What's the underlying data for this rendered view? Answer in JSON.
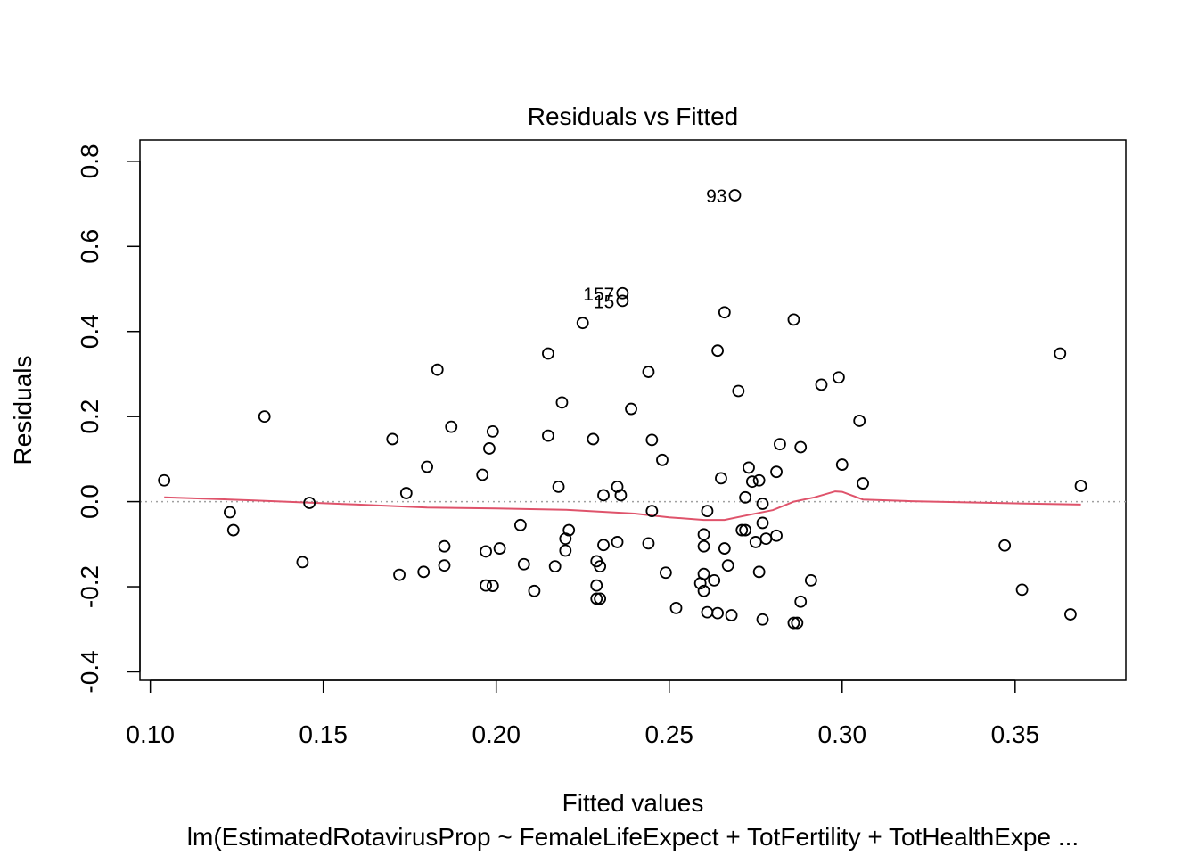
{
  "chart_data": {
    "type": "scatter",
    "title": "Residuals vs Fitted",
    "xlabel": "Fitted values",
    "ylabel": "Residuals",
    "subtitle": "lm(EstimatedRotavirusProp ~ FemaleLifeExpect + TotFertility + TotHealthExpe ...",
    "xlim": [
      0.097,
      0.382
    ],
    "ylim": [
      -0.42,
      0.85
    ],
    "xticks": [
      0.1,
      0.15,
      0.2,
      0.25,
      0.3,
      0.35
    ],
    "xtick_labels": [
      "0.10",
      "0.15",
      "0.20",
      "0.25",
      "0.30",
      "0.35"
    ],
    "yticks": [
      -0.4,
      -0.2,
      0.0,
      0.2,
      0.4,
      0.6,
      0.8
    ],
    "ytick_labels": [
      "-0.4",
      "-0.2",
      "0.0",
      "0.2",
      "0.4",
      "0.6",
      "0.8"
    ],
    "reference_line": {
      "y": 0,
      "style": "dotted",
      "color": "#a0a0a0"
    },
    "smooth_color": "#df536b",
    "point_color": "#000000",
    "points": [
      [
        0.104,
        0.05
      ],
      [
        0.123,
        -0.025
      ],
      [
        0.124,
        -0.067
      ],
      [
        0.133,
        0.2
      ],
      [
        0.144,
        -0.142
      ],
      [
        0.146,
        -0.003
      ],
      [
        0.17,
        0.147
      ],
      [
        0.172,
        -0.172
      ],
      [
        0.174,
        0.02
      ],
      [
        0.179,
        -0.165
      ],
      [
        0.18,
        0.082
      ],
      [
        0.183,
        0.31
      ],
      [
        0.185,
        -0.105
      ],
      [
        0.185,
        -0.15
      ],
      [
        0.187,
        0.176
      ],
      [
        0.196,
        0.063
      ],
      [
        0.197,
        -0.197
      ],
      [
        0.197,
        -0.117
      ],
      [
        0.198,
        0.125
      ],
      [
        0.199,
        0.165
      ],
      [
        0.199,
        -0.198
      ],
      [
        0.201,
        -0.11
      ],
      [
        0.207,
        -0.055
      ],
      [
        0.208,
        -0.147
      ],
      [
        0.211,
        -0.21
      ],
      [
        0.215,
        0.155
      ],
      [
        0.215,
        0.348
      ],
      [
        0.217,
        -0.152
      ],
      [
        0.218,
        0.035
      ],
      [
        0.219,
        0.233
      ],
      [
        0.22,
        -0.115
      ],
      [
        0.22,
        -0.087
      ],
      [
        0.221,
        -0.067
      ],
      [
        0.225,
        0.42
      ],
      [
        0.228,
        0.147
      ],
      [
        0.229,
        -0.14
      ],
      [
        0.229,
        -0.197
      ],
      [
        0.229,
        -0.228
      ],
      [
        0.23,
        -0.152
      ],
      [
        0.23,
        -0.228
      ],
      [
        0.231,
        0.015
      ],
      [
        0.231,
        -0.102
      ],
      [
        0.235,
        0.035
      ],
      [
        0.235,
        -0.095
      ],
      [
        0.236,
        0.015
      ],
      [
        0.239,
        0.218
      ],
      [
        0.244,
        -0.098
      ],
      [
        0.244,
        0.305
      ],
      [
        0.245,
        0.145
      ],
      [
        0.245,
        -0.022
      ],
      [
        0.248,
        0.098
      ],
      [
        0.249,
        -0.167
      ],
      [
        0.252,
        -0.25
      ],
      [
        0.259,
        -0.192
      ],
      [
        0.26,
        -0.077
      ],
      [
        0.26,
        -0.105
      ],
      [
        0.26,
        -0.17
      ],
      [
        0.26,
        -0.21
      ],
      [
        0.261,
        -0.022
      ],
      [
        0.261,
        -0.26
      ],
      [
        0.263,
        -0.185
      ],
      [
        0.264,
        0.355
      ],
      [
        0.264,
        -0.262
      ],
      [
        0.265,
        0.055
      ],
      [
        0.266,
        -0.11
      ],
      [
        0.266,
        0.445
      ],
      [
        0.267,
        -0.15
      ],
      [
        0.268,
        -0.267
      ],
      [
        0.27,
        0.26
      ],
      [
        0.271,
        -0.067
      ],
      [
        0.272,
        -0.067
      ],
      [
        0.272,
        0.01
      ],
      [
        0.273,
        0.08
      ],
      [
        0.274,
        0.047
      ],
      [
        0.275,
        -0.095
      ],
      [
        0.276,
        0.05
      ],
      [
        0.276,
        -0.165
      ],
      [
        0.277,
        -0.277
      ],
      [
        0.277,
        -0.005
      ],
      [
        0.277,
        -0.05
      ],
      [
        0.278,
        -0.087
      ],
      [
        0.281,
        -0.08
      ],
      [
        0.281,
        0.07
      ],
      [
        0.282,
        0.135
      ],
      [
        0.286,
        -0.285
      ],
      [
        0.286,
        0.428
      ],
      [
        0.287,
        -0.285
      ],
      [
        0.288,
        0.128
      ],
      [
        0.288,
        -0.235
      ],
      [
        0.291,
        -0.185
      ],
      [
        0.294,
        0.275
      ],
      [
        0.299,
        0.292
      ],
      [
        0.3,
        0.087
      ],
      [
        0.305,
        0.19
      ],
      [
        0.306,
        0.043
      ],
      [
        0.347,
        -0.103
      ],
      [
        0.352,
        -0.207
      ],
      [
        0.363,
        0.348
      ],
      [
        0.366,
        -0.265
      ],
      [
        0.369,
        0.037
      ]
    ],
    "labeled_points": [
      {
        "label": "93",
        "x": 0.269,
        "y": 0.72
      },
      {
        "label": "157",
        "x": 0.2365,
        "y": 0.49
      },
      {
        "label": "15",
        "x": 0.2365,
        "y": 0.472
      }
    ],
    "smooth_line": [
      [
        0.104,
        0.01
      ],
      [
        0.13,
        0.003
      ],
      [
        0.16,
        -0.007
      ],
      [
        0.18,
        -0.014
      ],
      [
        0.2,
        -0.016
      ],
      [
        0.22,
        -0.019
      ],
      [
        0.24,
        -0.028
      ],
      [
        0.25,
        -0.037
      ],
      [
        0.26,
        -0.043
      ],
      [
        0.266,
        -0.043
      ],
      [
        0.272,
        -0.033
      ],
      [
        0.28,
        -0.02
      ],
      [
        0.286,
        0.0
      ],
      [
        0.292,
        0.01
      ],
      [
        0.298,
        0.024
      ],
      [
        0.3,
        0.023
      ],
      [
        0.306,
        0.005
      ],
      [
        0.32,
        0.001
      ],
      [
        0.35,
        -0.004
      ],
      [
        0.369,
        -0.007
      ]
    ]
  }
}
